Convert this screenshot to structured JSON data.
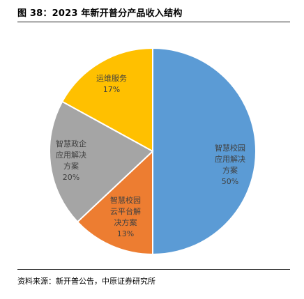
{
  "header": {
    "title": "图 38：2023 年新开普分产品收入结构"
  },
  "footer": {
    "source": "资料来源：新开普公告，中原证券研究所"
  },
  "chart_data": {
    "type": "pie",
    "title": "图 38：2023 年新开普分产品收入结构",
    "slices": [
      {
        "label_lines": [
          "智慧校园",
          "应用解决",
          "方案"
        ],
        "value": 50,
        "value_label": "50%",
        "color": "#5b9bd5"
      },
      {
        "label_lines": [
          "智慧校园",
          "云平台解",
          "决方案"
        ],
        "value": 13,
        "value_label": "13%",
        "color": "#ed7d31"
      },
      {
        "label_lines": [
          "智慧政企",
          "应用解决",
          "方案"
        ],
        "value": 20,
        "value_label": "20%",
        "color": "#a5a5a5"
      },
      {
        "label_lines": [
          "运维服务"
        ],
        "value": 17,
        "value_label": "17%",
        "color": "#ffc000"
      }
    ],
    "start_angle_deg": 0,
    "direction": "clockwise",
    "label_color": "#404040"
  }
}
